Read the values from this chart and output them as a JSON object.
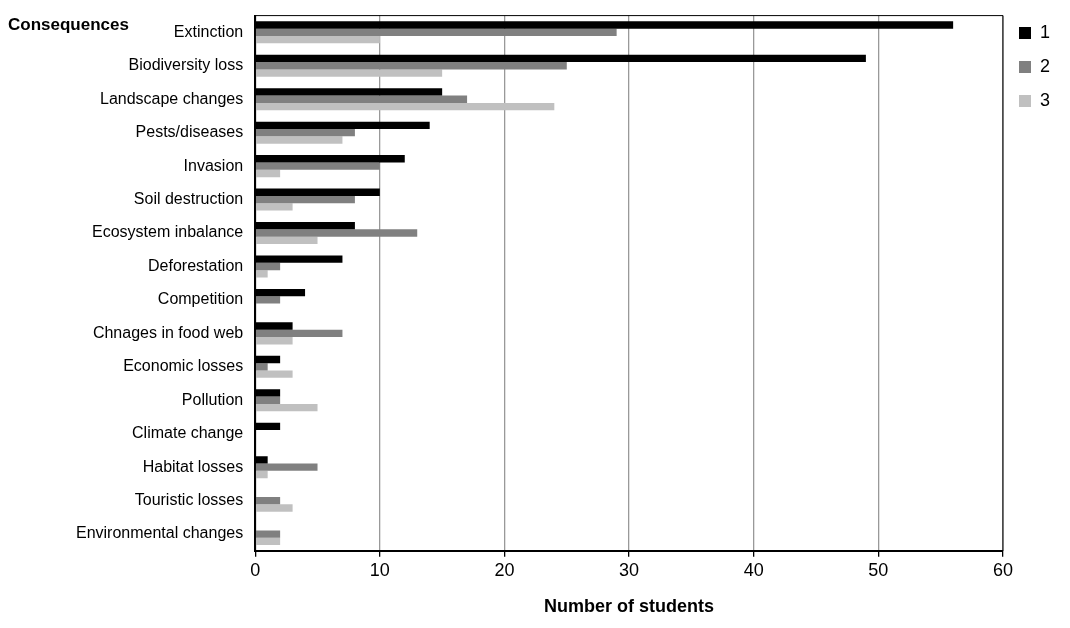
{
  "chart_data": {
    "type": "bar",
    "orientation": "horizontal",
    "ylabel": "Consequences",
    "xlabel": "Number of students",
    "categories": [
      "Extinction",
      "Biodiversity loss",
      "Landscape changes",
      "Pests/diseases",
      "Invasion",
      "Soil destruction",
      "Ecosystem inbalance",
      "Deforestation",
      "Competition",
      "Chnages in food web",
      "Economic losses",
      "Pollution",
      "Climate change",
      "Habitat losses",
      "Touristic losses",
      "Environmental changes"
    ],
    "series": [
      {
        "name": "1",
        "color": "#000000",
        "values": [
          56,
          49,
          15,
          14,
          12,
          10,
          8,
          7,
          4,
          3,
          2,
          2,
          2,
          1,
          0,
          0
        ]
      },
      {
        "name": "2",
        "color": "#808080",
        "values": [
          29,
          25,
          17,
          8,
          10,
          8,
          13,
          2,
          2,
          7,
          1,
          2,
          0,
          5,
          2,
          2
        ]
      },
      {
        "name": "3",
        "color": "#c0c0c0",
        "values": [
          10,
          15,
          24,
          7,
          2,
          3,
          5,
          1,
          0,
          3,
          3,
          5,
          0,
          1,
          3,
          2
        ]
      }
    ],
    "xlim": [
      0,
      60
    ],
    "xticks": [
      0,
      10,
      20,
      30,
      40,
      50,
      60
    ],
    "grid": "x",
    "legend": "top right"
  }
}
